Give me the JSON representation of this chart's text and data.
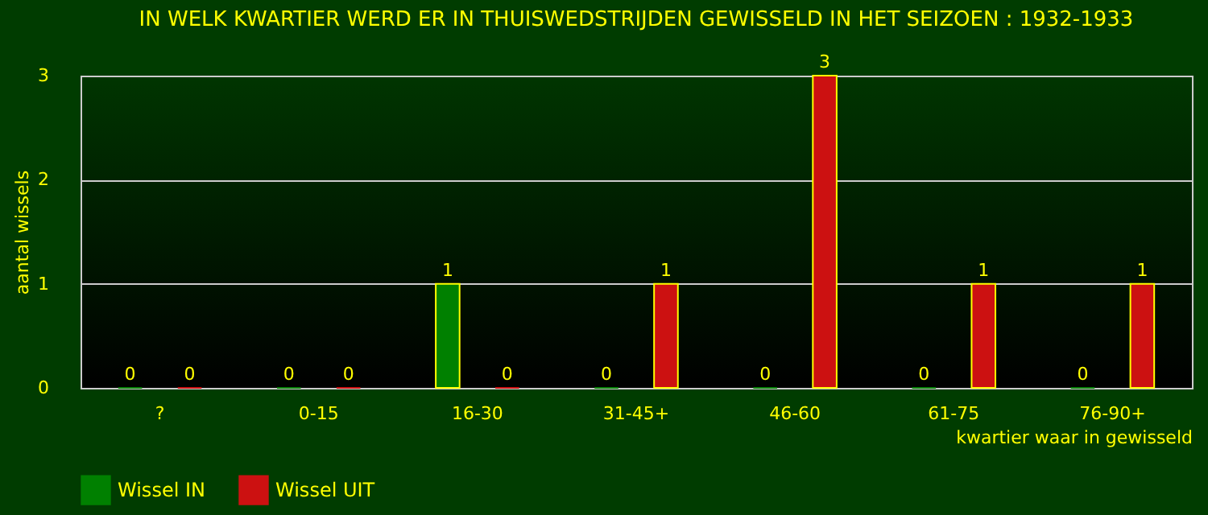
{
  "chart_data": {
    "type": "bar",
    "title": "IN WELK KWARTIER WERD ER IN THUISWEDSTRIJDEN GEWISSELD IN HET SEIZOEN : 1932-1933",
    "xlabel": "kwartier waar in gewisseld",
    "ylabel": "aantal wissels",
    "categories": [
      "?",
      "0-15",
      "16-30",
      "31-45+",
      "46-60",
      "61-75",
      "76-90+"
    ],
    "series": [
      {
        "name": "Wissel IN",
        "color": "#008000",
        "values": [
          0,
          0,
          1,
          0,
          0,
          0,
          0
        ]
      },
      {
        "name": "Wissel UIT",
        "color": "#cc1111",
        "values": [
          0,
          0,
          0,
          1,
          3,
          1,
          1
        ]
      }
    ],
    "ylim": [
      0,
      3
    ],
    "yticks": [
      0,
      1,
      2,
      3
    ],
    "grid": "y",
    "legend": "bottom",
    "data_labels": true
  }
}
